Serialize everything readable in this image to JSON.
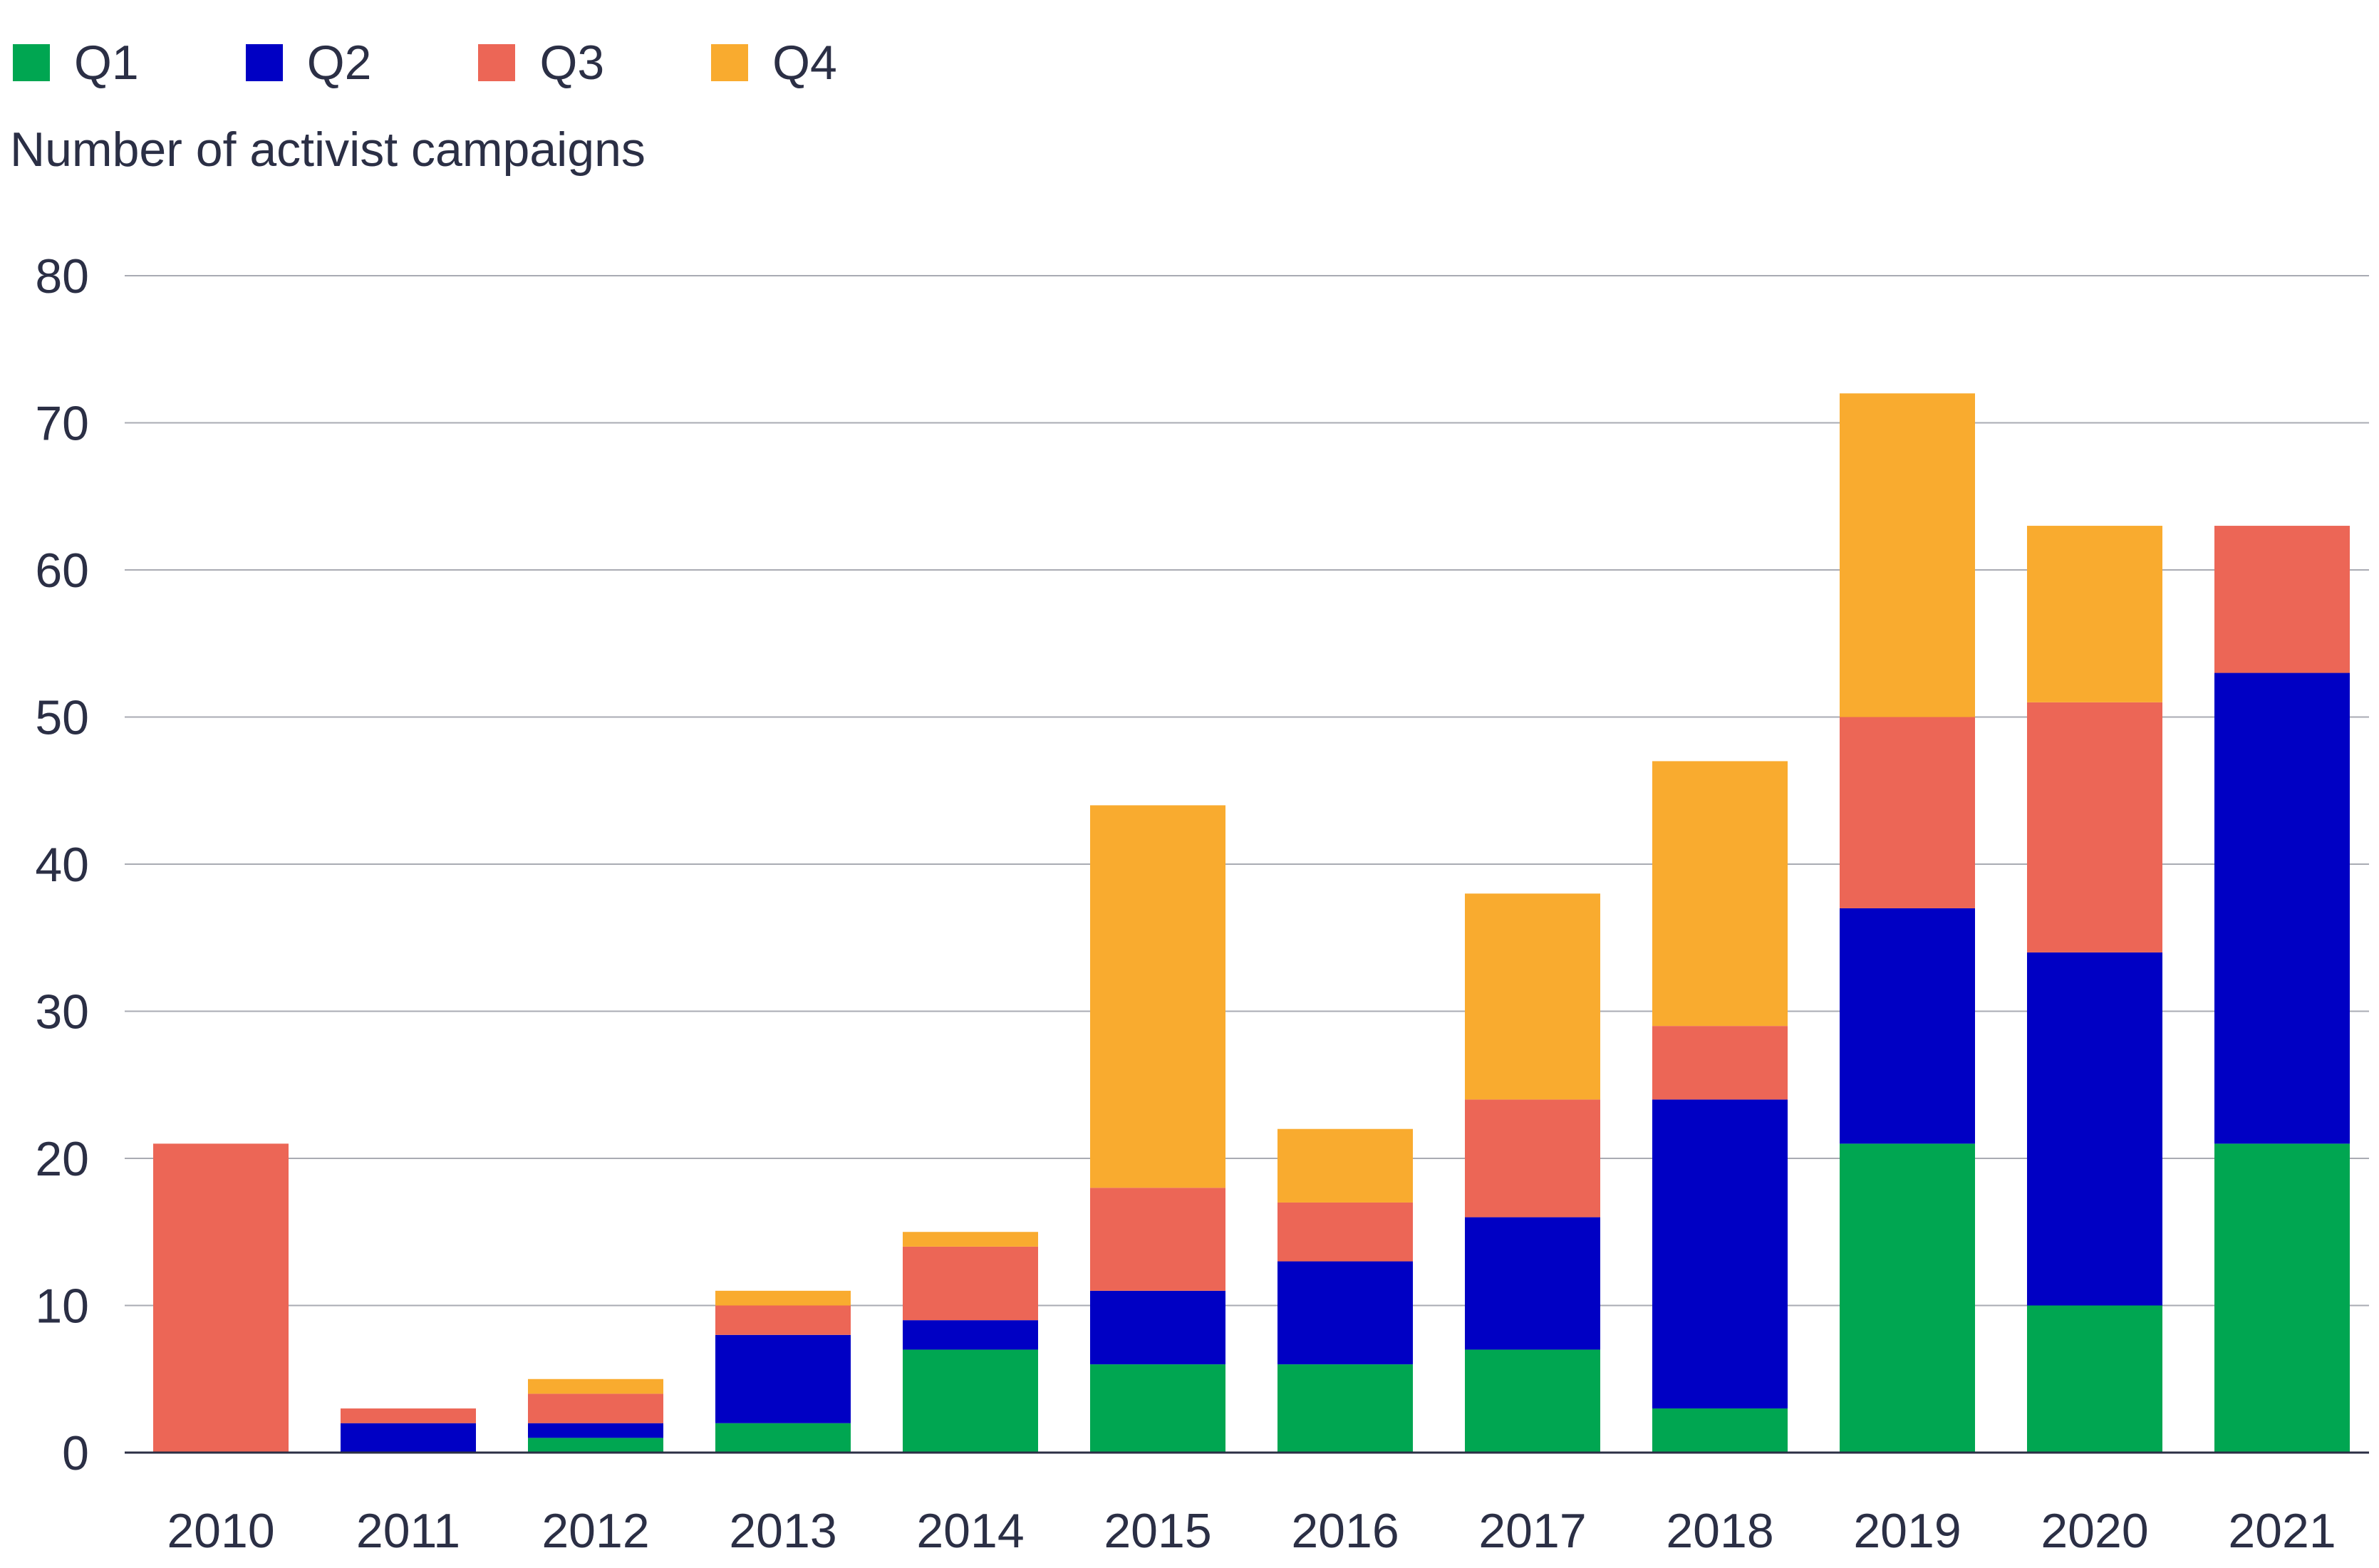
{
  "chart_data": {
    "type": "bar",
    "stacked": true,
    "title": "",
    "xlabel": "",
    "ylabel": "Number of activist campaigns",
    "ylim": [
      0,
      80
    ],
    "yticks": [
      0,
      10,
      20,
      30,
      40,
      50,
      60,
      70,
      80
    ],
    "grid": true,
    "legend_position": "top-left",
    "categories": [
      "2010",
      "2011",
      "2012",
      "2013",
      "2014",
      "2015",
      "2016",
      "2017",
      "2018",
      "2019",
      "2020",
      "2021"
    ],
    "series": [
      {
        "name": "Q1",
        "color": "#00a651",
        "values": [
          0,
          0,
          1,
          2,
          7,
          6,
          6,
          7,
          3,
          21,
          10,
          21
        ]
      },
      {
        "name": "Q2",
        "color": "#0000c4",
        "values": [
          0,
          2,
          1,
          6,
          2,
          5,
          7,
          9,
          21,
          16,
          24,
          32
        ]
      },
      {
        "name": "Q3",
        "color": "#ec6656",
        "values": [
          21,
          1,
          2,
          2,
          5,
          7,
          4,
          8,
          5,
          13,
          17,
          10
        ]
      },
      {
        "name": "Q4",
        "color": "#f9ab2f",
        "values": [
          0,
          0,
          1,
          1,
          1,
          26,
          5,
          14,
          18,
          22,
          12,
          0
        ]
      }
    ]
  }
}
